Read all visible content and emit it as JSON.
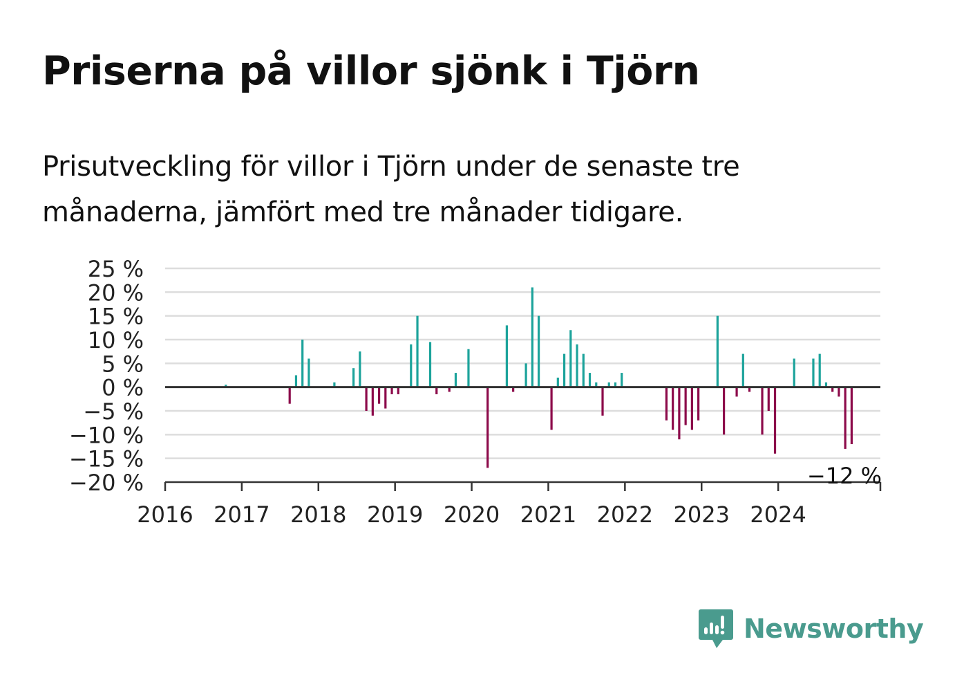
{
  "title": "Priserna på villor sjönk i Tjörn",
  "subtitle": "Prisutveckling för villor i Tjörn under de senaste tre månaderna, jämfört med tre månader tidigare.",
  "brand": {
    "name": "Newsworthy",
    "icon": "newsworthy-logo-icon",
    "color": "#4a9b8e"
  },
  "colors": {
    "positive": "#1ca39b",
    "negative": "#8c0a4a",
    "grid": "#dddddd",
    "axis": "#333333"
  },
  "chart_data": {
    "type": "bar",
    "title": "Priserna på villor sjönk i Tjörn",
    "subtitle": "Prisutveckling för villor i Tjörn under de senaste tre månaderna, jämfört med tre månader tidigare.",
    "unit": "%",
    "x_start": "2016-01",
    "xlim": [
      "2016-01",
      "2025-05"
    ],
    "ylim": [
      -20,
      25
    ],
    "yticks": [
      25,
      20,
      15,
      10,
      5,
      0,
      -5,
      -10,
      -15,
      -20
    ],
    "ytick_labels": [
      "25 %",
      "20 %",
      "15 %",
      "10 %",
      "5 %",
      "0 %",
      "−5 %",
      "−10 %",
      "−15 %",
      "−20 %"
    ],
    "xticks": [
      "2016",
      "2017",
      "2018",
      "2019",
      "2020",
      "2021",
      "2022",
      "2023",
      "2024"
    ],
    "grid": true,
    "last_label": "−12 %",
    "series": [
      {
        "x": [
          "2016-10",
          "2017-08",
          "2017-09",
          "2017-10",
          "2017-11",
          "2018-03",
          "2018-06",
          "2018-07",
          "2018-08",
          "2018-09",
          "2018-10",
          "2018-11",
          "2018-12",
          "2019-01",
          "2019-03",
          "2019-04",
          "2019-06",
          "2019-07",
          "2019-09",
          "2019-10",
          "2019-12",
          "2020-03",
          "2020-06",
          "2020-07",
          "2020-09",
          "2020-10",
          "2020-11",
          "2021-01",
          "2021-02",
          "2021-03",
          "2021-04",
          "2021-05",
          "2021-06",
          "2021-07",
          "2021-08",
          "2021-09",
          "2021-10",
          "2021-11",
          "2021-12",
          "2022-07",
          "2022-08",
          "2022-09",
          "2022-10",
          "2022-11",
          "2022-12",
          "2023-03",
          "2023-04",
          "2023-06",
          "2023-07",
          "2023-08",
          "2023-10",
          "2023-11",
          "2023-12",
          "2024-03",
          "2024-06",
          "2024-07",
          "2024-08",
          "2024-09",
          "2024-10",
          "2024-11",
          "2024-12"
        ],
        "values": [
          0.5,
          -3.5,
          2.5,
          10,
          6,
          1,
          4,
          7.5,
          -5,
          -6,
          -3.5,
          -4.5,
          -1.5,
          -1.5,
          9,
          15,
          9.5,
          -1.5,
          -1,
          3,
          8,
          -17,
          13,
          -1,
          5,
          21,
          15,
          -9,
          2,
          7,
          12,
          9,
          7,
          3,
          1,
          -6,
          1,
          1,
          3,
          -7,
          -9,
          -11,
          -8,
          -9,
          -7,
          15,
          -10,
          -2,
          7,
          -1,
          -10,
          -5,
          -14,
          6,
          6,
          7,
          1,
          -1,
          -2,
          -13,
          -12
        ]
      }
    ]
  }
}
